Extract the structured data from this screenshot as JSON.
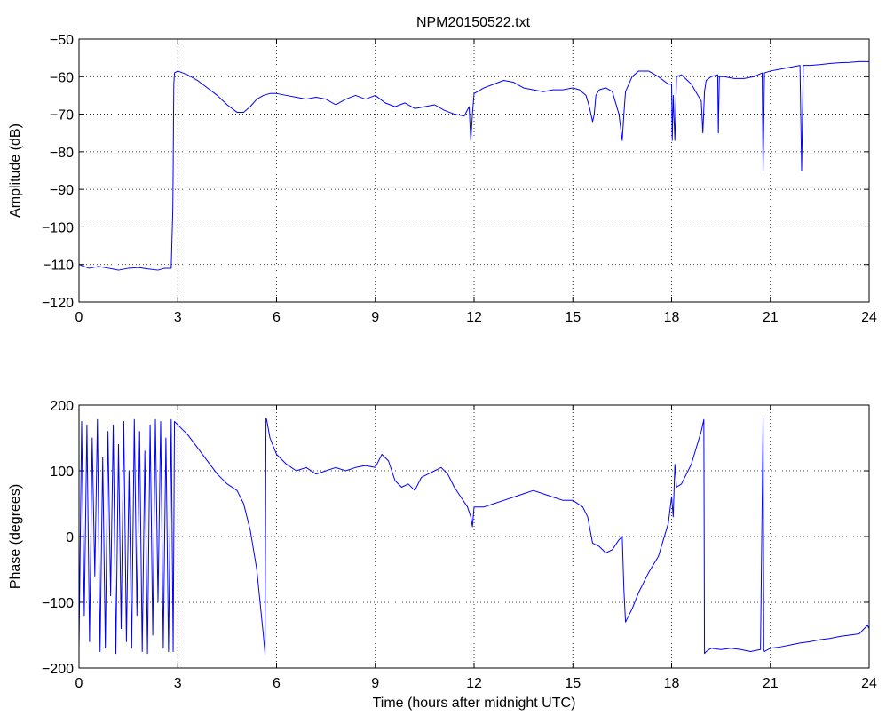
{
  "figure": {
    "title": "NPM20150522.txt"
  },
  "chart_data": [
    {
      "type": "line",
      "title": "NPM20150522.txt",
      "xlabel": "",
      "ylabel": "Amplitude (dB)",
      "xlim": [
        0,
        24
      ],
      "ylim": [
        -120,
        -50
      ],
      "xticks": [
        0,
        3,
        6,
        9,
        12,
        15,
        18,
        21,
        24
      ],
      "yticks": [
        -50,
        -60,
        -70,
        -80,
        -90,
        -100,
        -110,
        -120
      ],
      "grid": true,
      "color": "#0000ff",
      "series": [
        {
          "x": [
            0,
            0.3,
            0.6,
            0.9,
            1.2,
            1.5,
            1.8,
            2.1,
            2.4,
            2.6,
            2.8,
            2.85,
            2.86,
            2.87,
            2.88,
            2.9,
            3.0,
            3.3,
            3.6,
            3.9,
            4.2,
            4.5,
            4.8,
            5.0,
            5.2,
            5.4,
            5.6,
            5.8,
            6.0,
            6.3,
            6.6,
            6.9,
            7.2,
            7.5,
            7.8,
            8.1,
            8.4,
            8.7,
            9.0,
            9.3,
            9.6,
            9.9,
            10.2,
            10.5,
            10.8,
            11.1,
            11.4,
            11.7,
            11.85,
            11.9,
            11.95,
            12.0,
            12.3,
            12.6,
            12.9,
            13.2,
            13.5,
            13.8,
            14.1,
            14.4,
            14.7,
            15.0,
            15.2,
            15.4,
            15.5,
            15.6,
            15.65,
            15.7,
            15.8,
            16.0,
            16.2,
            16.4,
            16.5,
            16.55,
            16.6,
            16.8,
            17.0,
            17.3,
            17.6,
            17.9,
            18.0,
            18.02,
            18.05,
            18.1,
            18.15,
            18.3,
            18.6,
            18.9,
            18.95,
            19.0,
            19.05,
            19.2,
            19.4,
            19.42,
            19.45,
            19.6,
            19.9,
            20.2,
            20.5,
            20.75,
            20.78,
            20.82,
            21.0,
            21.3,
            21.6,
            21.9,
            21.95,
            22.0,
            22.2,
            22.5,
            22.8,
            23.1,
            23.4,
            23.7,
            24.0
          ],
          "y": [
            -110,
            -111,
            -110.5,
            -111,
            -111.5,
            -111,
            -110.8,
            -111.2,
            -111.5,
            -111,
            -111,
            -95,
            -85,
            -72,
            -62,
            -59,
            -58.5,
            -59.5,
            -61,
            -63,
            -65,
            -67.5,
            -69.5,
            -69.5,
            -68,
            -66,
            -65,
            -64.5,
            -64.5,
            -65,
            -65.5,
            -66,
            -65.5,
            -66,
            -67.5,
            -66,
            -65,
            -66,
            -65,
            -67,
            -68,
            -67,
            -68.5,
            -68,
            -67.5,
            -69,
            -70,
            -70.5,
            -68,
            -77,
            -70,
            -64.5,
            -63,
            -62,
            -61,
            -61.5,
            -63,
            -63.5,
            -64,
            -63.5,
            -63.5,
            -63,
            -63.5,
            -65,
            -68,
            -72,
            -70,
            -65,
            -63.5,
            -63,
            -64,
            -70,
            -77,
            -70,
            -64,
            -60,
            -58.5,
            -58.5,
            -60,
            -62,
            -62,
            -77,
            -65,
            -77,
            -60,
            -59.5,
            -62,
            -66.5,
            -75,
            -64,
            -61,
            -60,
            -59.5,
            -75,
            -60,
            -60,
            -60.5,
            -60.5,
            -60,
            -59,
            -85,
            -59,
            -58.5,
            -58,
            -57.5,
            -57,
            -85,
            -57,
            -57,
            -56.8,
            -56.5,
            -56.3,
            -56.2,
            -56,
            -56
          ]
        }
      ]
    },
    {
      "type": "line",
      "title": "",
      "xlabel": "Time (hours after midnight UTC)",
      "ylabel": "Phase (degrees)",
      "xlim": [
        0,
        24
      ],
      "ylim": [
        -200,
        200
      ],
      "xticks": [
        0,
        3,
        6,
        9,
        12,
        15,
        18,
        21,
        24
      ],
      "yticks": [
        200,
        100,
        0,
        -100,
        -200
      ],
      "grid": true,
      "color": "#0000ff",
      "series": [
        {
          "x": [
            0,
            0.08,
            0.16,
            0.24,
            0.32,
            0.4,
            0.48,
            0.56,
            0.64,
            0.72,
            0.8,
            0.88,
            0.96,
            1.04,
            1.12,
            1.2,
            1.28,
            1.36,
            1.44,
            1.52,
            1.6,
            1.68,
            1.76,
            1.84,
            1.92,
            2.0,
            2.08,
            2.16,
            2.24,
            2.32,
            2.4,
            2.48,
            2.56,
            2.64,
            2.72,
            2.8,
            2.86,
            2.9,
            3.0,
            3.3,
            3.6,
            3.9,
            4.2,
            4.5,
            4.8,
            5.0,
            5.2,
            5.4,
            5.6,
            5.65,
            5.68,
            5.7,
            5.8,
            6.0,
            6.3,
            6.6,
            6.9,
            7.2,
            7.5,
            7.8,
            8.1,
            8.4,
            8.7,
            9.0,
            9.2,
            9.4,
            9.6,
            9.8,
            10.0,
            10.2,
            10.4,
            10.6,
            10.8,
            11.0,
            11.2,
            11.4,
            11.6,
            11.8,
            11.9,
            11.95,
            12.0,
            12.3,
            12.6,
            12.9,
            13.2,
            13.5,
            13.8,
            14.1,
            14.4,
            14.7,
            15.0,
            15.3,
            15.45,
            15.6,
            15.8,
            16.0,
            16.2,
            16.4,
            16.5,
            16.55,
            16.6,
            16.8,
            17.0,
            17.3,
            17.6,
            17.9,
            18.0,
            18.05,
            18.1,
            18.15,
            18.3,
            18.6,
            18.9,
            18.98,
            19.0,
            19.05,
            19.2,
            19.5,
            19.8,
            20.1,
            20.4,
            20.7,
            20.78,
            20.8,
            20.82,
            21.0,
            21.3,
            21.6,
            21.9,
            22.2,
            22.5,
            22.8,
            23.1,
            23.4,
            23.7,
            23.85,
            23.95,
            24.0
          ],
          "y": [
            -170,
            175,
            -120,
            170,
            -160,
            150,
            -60,
            178,
            -175,
            120,
            -170,
            160,
            -90,
            170,
            -178,
            140,
            -140,
            175,
            -160,
            100,
            -170,
            178,
            -120,
            160,
            -175,
            130,
            -178,
            170,
            -150,
            178,
            -100,
            175,
            -170,
            150,
            -175,
            178,
            -175,
            175,
            170,
            155,
            135,
            115,
            95,
            80,
            70,
            50,
            10,
            -50,
            -150,
            -178,
            180,
            178,
            150,
            125,
            110,
            100,
            105,
            95,
            100,
            105,
            100,
            105,
            108,
            105,
            125,
            115,
            85,
            75,
            80,
            70,
            90,
            95,
            100,
            105,
            95,
            75,
            60,
            45,
            30,
            15,
            45,
            45,
            50,
            55,
            60,
            65,
            70,
            65,
            60,
            55,
            55,
            45,
            30,
            -10,
            -15,
            -25,
            -20,
            -5,
            0,
            -80,
            -130,
            -110,
            -85,
            -55,
            -30,
            20,
            60,
            30,
            110,
            75,
            80,
            110,
            160,
            178,
            -178,
            -175,
            -170,
            -172,
            -170,
            -172,
            -175,
            -172,
            180,
            -172,
            -175,
            -170,
            -168,
            -165,
            -162,
            -160,
            -157,
            -155,
            -152,
            -150,
            -148,
            -140,
            -135,
            -140
          ]
        }
      ]
    }
  ]
}
